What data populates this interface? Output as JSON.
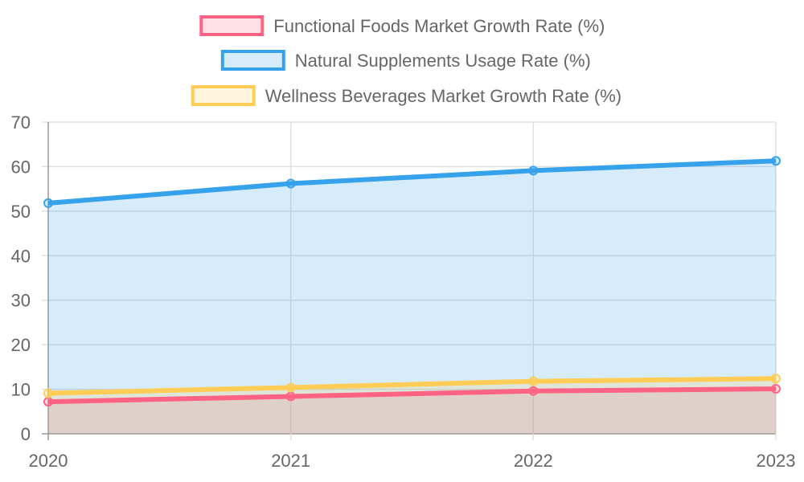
{
  "chart_data": {
    "type": "area",
    "title": "",
    "xlabel": "",
    "ylabel": "",
    "categories": [
      "2020",
      "2021",
      "2022",
      "2023"
    ],
    "ylim": [
      0,
      70
    ],
    "yticks": [
      0,
      10,
      20,
      30,
      40,
      50,
      60,
      70
    ],
    "grid": true,
    "legend_position": "top",
    "series": [
      {
        "name": "Functional Foods Market Growth Rate (%)",
        "values": [
          7.2,
          8.4,
          9.6,
          10.1
        ],
        "color": "#ff6384",
        "fill": "rgba(255,99,132,0.2)"
      },
      {
        "name": "Natural Supplements Usage Rate (%)",
        "values": [
          51.8,
          56.2,
          59.1,
          61.3
        ],
        "color": "#36a2eb",
        "fill": "rgba(54,162,235,0.2)"
      },
      {
        "name": "Wellness Beverages Market Growth Rate (%)",
        "values": [
          9.1,
          10.4,
          11.8,
          12.4
        ],
        "color": "#ffcd56",
        "fill": "rgba(255,205,86,0.2)"
      }
    ]
  }
}
